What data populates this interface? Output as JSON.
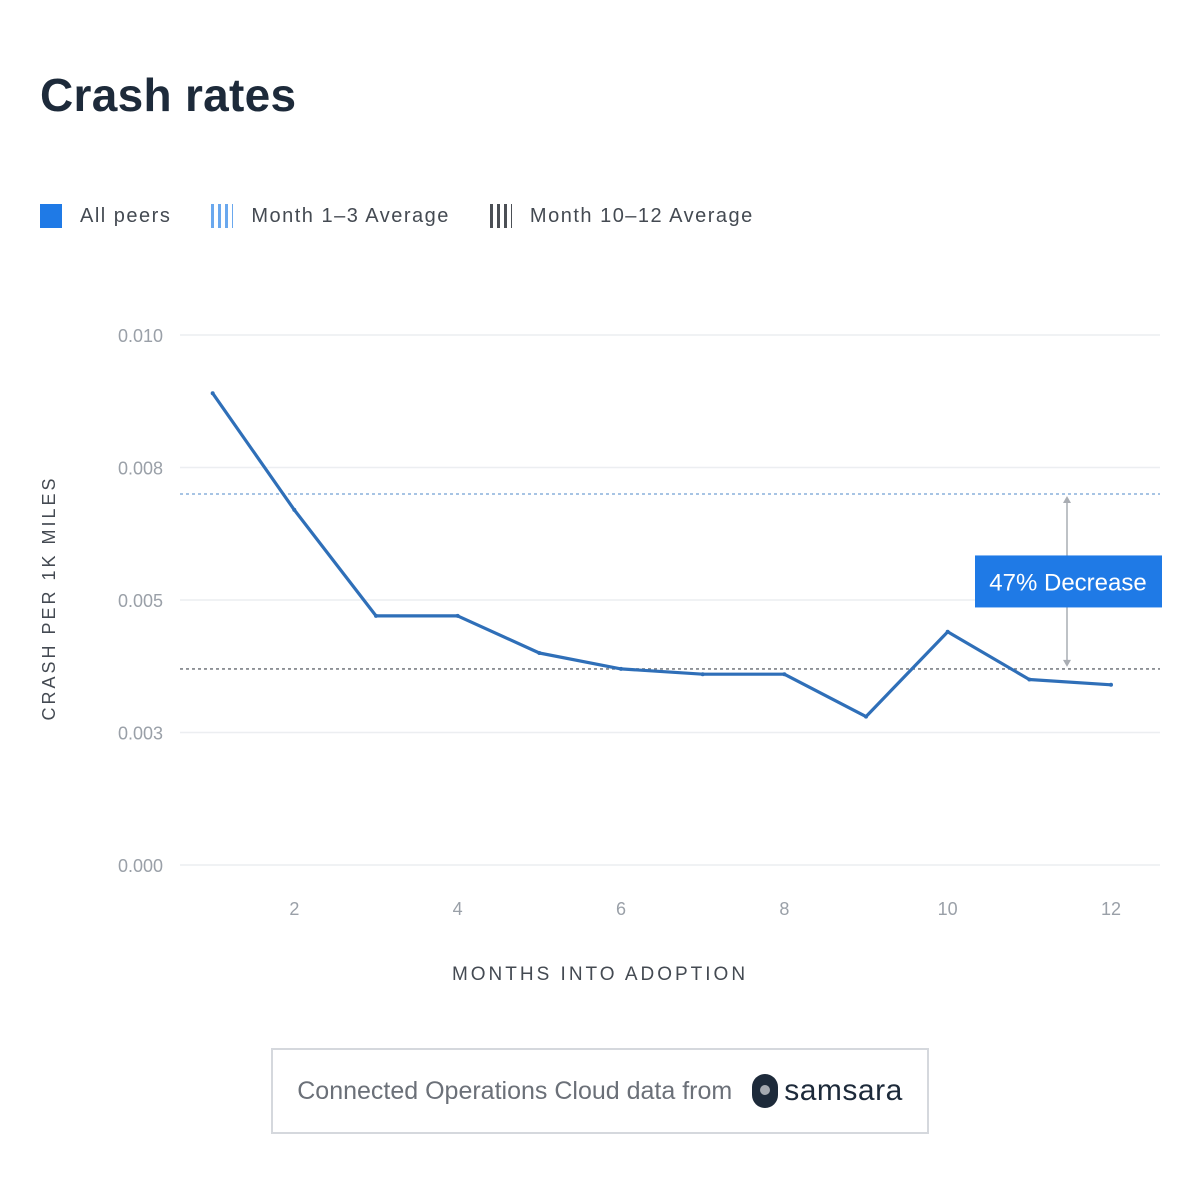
{
  "title": "Crash rates",
  "legend": [
    {
      "label": "All peers",
      "style": "solid",
      "color": "#1f7ae6"
    },
    {
      "label": "Month 1–3 Average",
      "style": "stripe",
      "color": "#6aa8ee"
    },
    {
      "label": "Month 10–12 Average",
      "style": "stripe",
      "color": "#4b4f55"
    }
  ],
  "chart_data": {
    "type": "line",
    "xlabel": "MONTHS INTO ADOPTION",
    "ylabel": "CRASH PER 1K MILES",
    "x_ticks": [
      "2",
      "4",
      "6",
      "8",
      "10",
      "12"
    ],
    "y_ticks": [
      "0.000",
      "0.003",
      "0.005",
      "0.008",
      "0.010"
    ],
    "xlim": [
      0.6,
      12.6
    ],
    "ylim": [
      0,
      0.01
    ],
    "grid": true,
    "legend_position": "top-left",
    "series": [
      {
        "name": "All peers",
        "color": "#2f6fb8",
        "x": [
          1,
          2,
          3,
          4,
          5,
          6,
          7,
          8,
          9,
          10,
          11,
          12
        ],
        "y": [
          0.0089,
          0.0067,
          0.0047,
          0.0047,
          0.004,
          0.0037,
          0.0036,
          0.0036,
          0.0028,
          0.0044,
          0.0035,
          0.0034
        ]
      }
    ],
    "reference_lines": [
      {
        "name": "Month 1–3 Average",
        "y": 0.007,
        "color": "#8ab0dc"
      },
      {
        "name": "Month 10–12 Average",
        "y": 0.0037,
        "color": "#7d8186"
      }
    ],
    "annotation": {
      "label": "47% Decrease",
      "color": "#1f7ae6"
    }
  },
  "footer": {
    "text": "Connected Operations Cloud data from",
    "brand": "samsara"
  }
}
